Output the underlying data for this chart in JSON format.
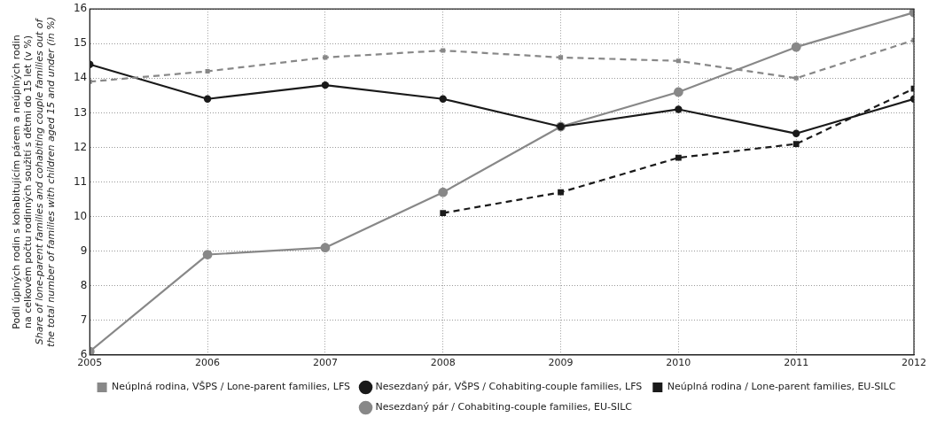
{
  "chart_data": {
    "type": "line",
    "ylabel": "Podíl úplných rodin s kohabitujícím párem a neúplných rodin\nna celkovém počtu rodinných soužití s dětmi do 15 let (v %)\nShare of lone-parent families and cohabiting couple families out of\nthe total number of families with children aged 15 and under (in %)",
    "x": [
      2005,
      2006,
      2007,
      2008,
      2009,
      2010,
      2011,
      2012
    ],
    "xlim": [
      2005,
      2012
    ],
    "xticks": [
      2005,
      2006,
      2007,
      2008,
      2009,
      2010,
      2011,
      2012
    ],
    "ylim": [
      6,
      16
    ],
    "yticks": [
      6,
      7,
      8,
      9,
      10,
      11,
      12,
      13,
      14,
      15,
      16
    ],
    "grid": true,
    "legend": "bottom",
    "series": [
      {
        "name": "Nesezdaný pár / Cohabiting-couple families, EU-SILC",
        "color": "#888888",
        "marker": "circle",
        "line_style": "solid",
        "values": [
          6.1,
          8.9,
          9.1,
          10.7,
          12.6,
          13.6,
          14.9,
          15.9
        ]
      },
      {
        "name": "Neúplná rodina / Lone-parent families, EU-SILC",
        "color": "#1a1a1a",
        "marker": "square",
        "line_style": "dashed",
        "values": [
          null,
          null,
          null,
          10.1,
          10.7,
          11.7,
          12.1,
          13.7
        ]
      },
      {
        "name": "Nesezdaný pár, VŠPS / Cohabiting-couple families, LFS",
        "color": "#1a1a1a",
        "marker": "circle",
        "line_style": "solid",
        "values": [
          14.4,
          13.4,
          13.8,
          13.4,
          12.6,
          13.1,
          12.4,
          13.4
        ]
      },
      {
        "name": "Neúplná rodina, VŠPS / Lone-parent families, LFS",
        "color": "#888888",
        "marker": "square",
        "line_style": "dashed",
        "values": [
          13.9,
          14.2,
          14.6,
          14.8,
          14.6,
          14.5,
          14.0,
          15.1
        ]
      }
    ]
  }
}
